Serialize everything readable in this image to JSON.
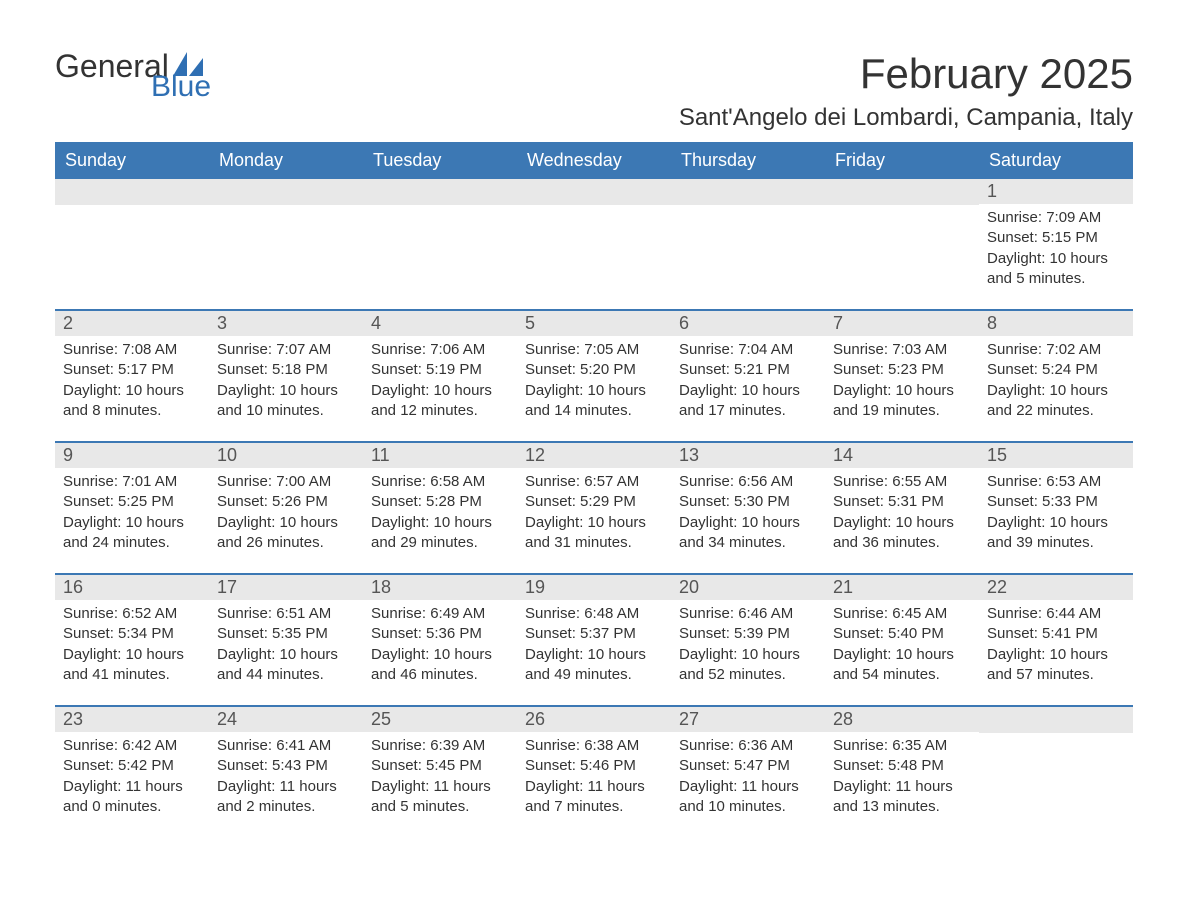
{
  "logo": {
    "text_general": "General",
    "text_blue": "Blue",
    "sail_color": "#2f6fb3"
  },
  "header": {
    "month_title": "February 2025",
    "location": "Sant'Angelo dei Lombardi, Campania, Italy"
  },
  "colors": {
    "header_bg": "#3c78b4",
    "header_text": "#ffffff",
    "daynum_bg": "#e8e8e8",
    "daynum_text": "#555555",
    "body_text": "#333333",
    "row_divider": "#3c78b4",
    "page_bg": "#ffffff"
  },
  "typography": {
    "month_title_fontsize": 42,
    "location_fontsize": 24,
    "weekday_fontsize": 18,
    "daynum_fontsize": 18,
    "body_fontsize": 15,
    "font_family": "Arial"
  },
  "weekdays": [
    "Sunday",
    "Monday",
    "Tuesday",
    "Wednesday",
    "Thursday",
    "Friday",
    "Saturday"
  ],
  "weeks": [
    [
      {
        "day": "",
        "sunrise": "",
        "sunset": "",
        "daylight": ""
      },
      {
        "day": "",
        "sunrise": "",
        "sunset": "",
        "daylight": ""
      },
      {
        "day": "",
        "sunrise": "",
        "sunset": "",
        "daylight": ""
      },
      {
        "day": "",
        "sunrise": "",
        "sunset": "",
        "daylight": ""
      },
      {
        "day": "",
        "sunrise": "",
        "sunset": "",
        "daylight": ""
      },
      {
        "day": "",
        "sunrise": "",
        "sunset": "",
        "daylight": ""
      },
      {
        "day": "1",
        "sunrise": "Sunrise: 7:09 AM",
        "sunset": "Sunset: 5:15 PM",
        "daylight": "Daylight: 10 hours and 5 minutes."
      }
    ],
    [
      {
        "day": "2",
        "sunrise": "Sunrise: 7:08 AM",
        "sunset": "Sunset: 5:17 PM",
        "daylight": "Daylight: 10 hours and 8 minutes."
      },
      {
        "day": "3",
        "sunrise": "Sunrise: 7:07 AM",
        "sunset": "Sunset: 5:18 PM",
        "daylight": "Daylight: 10 hours and 10 minutes."
      },
      {
        "day": "4",
        "sunrise": "Sunrise: 7:06 AM",
        "sunset": "Sunset: 5:19 PM",
        "daylight": "Daylight: 10 hours and 12 minutes."
      },
      {
        "day": "5",
        "sunrise": "Sunrise: 7:05 AM",
        "sunset": "Sunset: 5:20 PM",
        "daylight": "Daylight: 10 hours and 14 minutes."
      },
      {
        "day": "6",
        "sunrise": "Sunrise: 7:04 AM",
        "sunset": "Sunset: 5:21 PM",
        "daylight": "Daylight: 10 hours and 17 minutes."
      },
      {
        "day": "7",
        "sunrise": "Sunrise: 7:03 AM",
        "sunset": "Sunset: 5:23 PM",
        "daylight": "Daylight: 10 hours and 19 minutes."
      },
      {
        "day": "8",
        "sunrise": "Sunrise: 7:02 AM",
        "sunset": "Sunset: 5:24 PM",
        "daylight": "Daylight: 10 hours and 22 minutes."
      }
    ],
    [
      {
        "day": "9",
        "sunrise": "Sunrise: 7:01 AM",
        "sunset": "Sunset: 5:25 PM",
        "daylight": "Daylight: 10 hours and 24 minutes."
      },
      {
        "day": "10",
        "sunrise": "Sunrise: 7:00 AM",
        "sunset": "Sunset: 5:26 PM",
        "daylight": "Daylight: 10 hours and 26 minutes."
      },
      {
        "day": "11",
        "sunrise": "Sunrise: 6:58 AM",
        "sunset": "Sunset: 5:28 PM",
        "daylight": "Daylight: 10 hours and 29 minutes."
      },
      {
        "day": "12",
        "sunrise": "Sunrise: 6:57 AM",
        "sunset": "Sunset: 5:29 PM",
        "daylight": "Daylight: 10 hours and 31 minutes."
      },
      {
        "day": "13",
        "sunrise": "Sunrise: 6:56 AM",
        "sunset": "Sunset: 5:30 PM",
        "daylight": "Daylight: 10 hours and 34 minutes."
      },
      {
        "day": "14",
        "sunrise": "Sunrise: 6:55 AM",
        "sunset": "Sunset: 5:31 PM",
        "daylight": "Daylight: 10 hours and 36 minutes."
      },
      {
        "day": "15",
        "sunrise": "Sunrise: 6:53 AM",
        "sunset": "Sunset: 5:33 PM",
        "daylight": "Daylight: 10 hours and 39 minutes."
      }
    ],
    [
      {
        "day": "16",
        "sunrise": "Sunrise: 6:52 AM",
        "sunset": "Sunset: 5:34 PM",
        "daylight": "Daylight: 10 hours and 41 minutes."
      },
      {
        "day": "17",
        "sunrise": "Sunrise: 6:51 AM",
        "sunset": "Sunset: 5:35 PM",
        "daylight": "Daylight: 10 hours and 44 minutes."
      },
      {
        "day": "18",
        "sunrise": "Sunrise: 6:49 AM",
        "sunset": "Sunset: 5:36 PM",
        "daylight": "Daylight: 10 hours and 46 minutes."
      },
      {
        "day": "19",
        "sunrise": "Sunrise: 6:48 AM",
        "sunset": "Sunset: 5:37 PM",
        "daylight": "Daylight: 10 hours and 49 minutes."
      },
      {
        "day": "20",
        "sunrise": "Sunrise: 6:46 AM",
        "sunset": "Sunset: 5:39 PM",
        "daylight": "Daylight: 10 hours and 52 minutes."
      },
      {
        "day": "21",
        "sunrise": "Sunrise: 6:45 AM",
        "sunset": "Sunset: 5:40 PM",
        "daylight": "Daylight: 10 hours and 54 minutes."
      },
      {
        "day": "22",
        "sunrise": "Sunrise: 6:44 AM",
        "sunset": "Sunset: 5:41 PM",
        "daylight": "Daylight: 10 hours and 57 minutes."
      }
    ],
    [
      {
        "day": "23",
        "sunrise": "Sunrise: 6:42 AM",
        "sunset": "Sunset: 5:42 PM",
        "daylight": "Daylight: 11 hours and 0 minutes."
      },
      {
        "day": "24",
        "sunrise": "Sunrise: 6:41 AM",
        "sunset": "Sunset: 5:43 PM",
        "daylight": "Daylight: 11 hours and 2 minutes."
      },
      {
        "day": "25",
        "sunrise": "Sunrise: 6:39 AM",
        "sunset": "Sunset: 5:45 PM",
        "daylight": "Daylight: 11 hours and 5 minutes."
      },
      {
        "day": "26",
        "sunrise": "Sunrise: 6:38 AM",
        "sunset": "Sunset: 5:46 PM",
        "daylight": "Daylight: 11 hours and 7 minutes."
      },
      {
        "day": "27",
        "sunrise": "Sunrise: 6:36 AM",
        "sunset": "Sunset: 5:47 PM",
        "daylight": "Daylight: 11 hours and 10 minutes."
      },
      {
        "day": "28",
        "sunrise": "Sunrise: 6:35 AM",
        "sunset": "Sunset: 5:48 PM",
        "daylight": "Daylight: 11 hours and 13 minutes."
      },
      {
        "day": "",
        "sunrise": "",
        "sunset": "",
        "daylight": ""
      }
    ]
  ]
}
